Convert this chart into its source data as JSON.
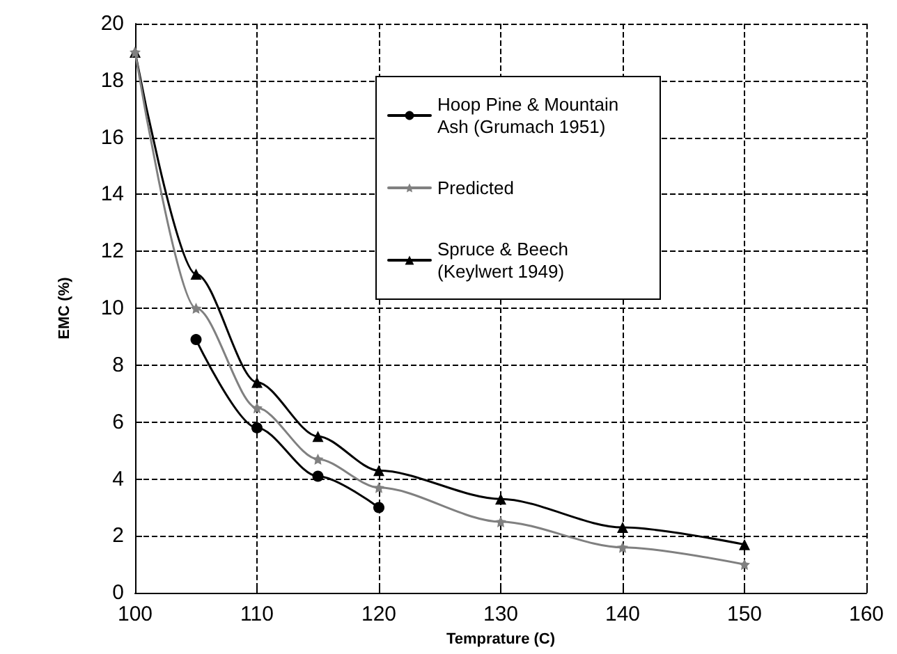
{
  "chart_data": {
    "type": "line",
    "xlabel": "Temprature (C)",
    "ylabel": "EMC (%)",
    "xlim": [
      100,
      160
    ],
    "xticks": [
      100,
      110,
      120,
      130,
      140,
      150,
      160
    ],
    "ylim": [
      0,
      20
    ],
    "yticks": [
      0,
      2,
      4,
      6,
      8,
      10,
      12,
      14,
      16,
      18,
      20
    ],
    "grid": true,
    "legend": "top right",
    "line_style": "solid",
    "series": [
      {
        "name": "Hoop Pine & Mountain Ash (Grumach 1951)",
        "color": "#000000",
        "marker": "circle",
        "x": [
          105,
          110,
          115,
          120
        ],
        "values": [
          8.9,
          5.8,
          4.1,
          3.0
        ]
      },
      {
        "name": "Predicted",
        "color": "#808080",
        "marker": "star",
        "x": [
          100,
          105,
          110,
          115,
          120,
          130,
          140,
          150
        ],
        "values": [
          19,
          10,
          6.5,
          4.7,
          3.7,
          2.5,
          1.6,
          1.0
        ]
      },
      {
        "name": "Spruce & Beech (Keylwert 1949)",
        "color": "#000000",
        "marker": "triangle",
        "x": [
          100,
          105,
          110,
          115,
          120,
          130,
          140,
          150
        ],
        "values": [
          19,
          11.2,
          7.4,
          5.5,
          4.3,
          3.3,
          2.3,
          1.7
        ]
      }
    ]
  }
}
